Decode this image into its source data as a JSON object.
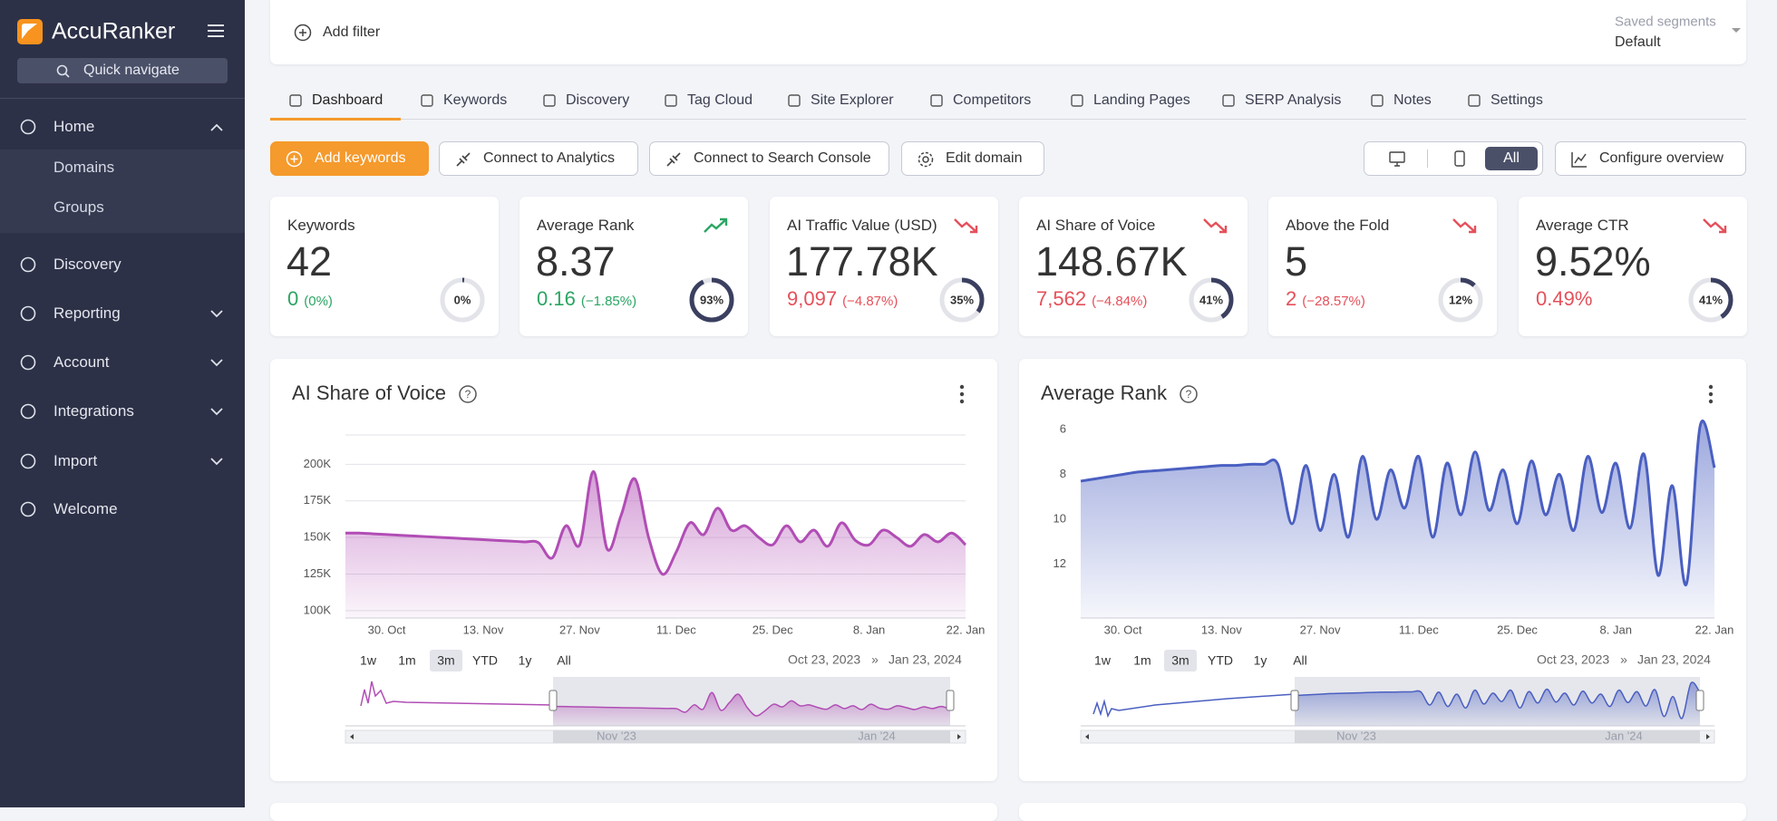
{
  "sidebar": {
    "brand": "AccuRanker",
    "search": "Quick navigate",
    "menu": [
      "Home",
      "Discovery",
      "Reporting",
      "Account",
      "Integrations",
      "Import",
      "Welcome"
    ],
    "submenu": [
      "Domains",
      "Groups"
    ]
  },
  "filter_bar": {
    "add_filter": "Add filter",
    "segments_label": "Saved segments",
    "segments_value": "Default"
  },
  "tabs": [
    "Dashboard",
    "Keywords",
    "Discovery",
    "Tag Cloud",
    "Site Explorer",
    "Competitors",
    "Landing Pages",
    "SERP Analysis",
    "Notes",
    "Settings"
  ],
  "actions": {
    "add_keywords": "Add keywords",
    "analytics": "Connect to Analytics",
    "search_console": "Connect to Search Console",
    "edit_domain": "Edit domain",
    "device": "All",
    "configure": "Configure overview"
  },
  "kpis": [
    {
      "title": "Keywords",
      "value": "42",
      "change": "0",
      "change_pct": "(0%)",
      "change_color": "#2aa563",
      "gauge": {
        "value": 0,
        "label": "0%"
      }
    },
    {
      "title": "Average Rank",
      "value": "8.37",
      "change": "0.16",
      "change_pct": "(−1.85%)",
      "change_color": "#2aa563",
      "trend": "up",
      "gauge": {
        "value": 93,
        "label": "93%"
      }
    },
    {
      "title": "AI Traffic Value (USD)",
      "value": "177.78K",
      "change": "9,097",
      "change_pct": "(−4.87%)",
      "change_color": "#e5505a",
      "trend": "down",
      "gauge": {
        "value": 35,
        "label": "35%"
      }
    },
    {
      "title": "AI Share of Voice",
      "value": "148.67K",
      "change": "7,562",
      "change_pct": "(−4.84%)",
      "change_color": "#e5505a",
      "trend": "down",
      "gauge": {
        "value": 41,
        "label": "41%"
      }
    },
    {
      "title": "Above the Fold",
      "value": "5",
      "change": "2",
      "change_pct": "(−28.57%)",
      "change_color": "#e5505a",
      "trend": "down",
      "gauge": {
        "value": 12,
        "label": "12%"
      }
    },
    {
      "title": "Average CTR",
      "value": "9.52%",
      "change": "0.49%",
      "change_color": "#e5505a",
      "trend": "down",
      "gauge": {
        "value": 41,
        "label": "41%"
      }
    }
  ],
  "chart_data": [
    {
      "type": "area",
      "title": "AI Share of Voice",
      "color": "#b14db5",
      "grid": true,
      "categories": [
        null,
        null,
        null,
        "30. Oct",
        null,
        null,
        null,
        null,
        null,
        null,
        "13. Nov",
        null,
        null,
        null,
        null,
        null,
        null,
        "27. Nov",
        null,
        null,
        null,
        null,
        null,
        null,
        "11. Dec",
        null,
        null,
        null,
        null,
        null,
        null,
        "25. Dec",
        null,
        null,
        null,
        null,
        null,
        null,
        "8. Jan",
        null,
        null,
        null,
        null,
        null,
        null,
        "22. Jan"
      ],
      "values": [
        153000,
        153000,
        152500,
        152000,
        151500,
        151000,
        150500,
        150000,
        149500,
        149000,
        148500,
        148000,
        147500,
        147000,
        146500,
        136000,
        158000,
        145000,
        195000,
        142000,
        165000,
        190000,
        150000,
        125000,
        140000,
        160000,
        152000,
        170000,
        155000,
        158000,
        150000,
        145000,
        158000,
        147000,
        155000,
        144000,
        160000,
        148000,
        145000,
        155000,
        150000,
        144000,
        152000,
        147000,
        153000,
        145000
      ],
      "ylim": [
        95000,
        220000
      ],
      "yticks": [
        {
          "value": 100000,
          "label": "100K"
        },
        {
          "value": 125000,
          "label": "125K"
        },
        {
          "value": 150000,
          "label": "150K"
        },
        {
          "value": 175000,
          "label": "175K"
        },
        {
          "value": 200000,
          "label": "200K"
        }
      ],
      "ranges": [
        "1w",
        "1m",
        "3m",
        "YTD",
        "1y",
        "All"
      ],
      "selected_range": "3m",
      "date_from": "Oct 23, 2023",
      "date_sep": "»",
      "date_to": "Jan 23, 2024",
      "navigator_labels": [
        "Nov '23",
        "Jan '24"
      ]
    },
    {
      "type": "area",
      "title": "Average Rank",
      "color": "#4a5fc1",
      "grid": false,
      "reverse_y": true,
      "categories": [
        null,
        null,
        null,
        "30. Oct",
        null,
        null,
        null,
        null,
        null,
        null,
        "13. Nov",
        null,
        null,
        null,
        null,
        null,
        null,
        "27. Nov",
        null,
        null,
        null,
        null,
        null,
        null,
        "11. Dec",
        null,
        null,
        null,
        null,
        null,
        null,
        "25. Dec",
        null,
        null,
        null,
        null,
        null,
        null,
        "8. Jan",
        null,
        null,
        null,
        null,
        null,
        null,
        "22. Jan"
      ],
      "values": [
        8.3,
        8.2,
        8.1,
        8.0,
        7.9,
        7.85,
        7.8,
        7.75,
        7.7,
        7.65,
        7.6,
        7.6,
        7.55,
        7.55,
        7.55,
        10.2,
        7.6,
        10.5,
        8.0,
        10.8,
        7.2,
        10.0,
        7.8,
        9.5,
        7.2,
        10.8,
        7.5,
        9.8,
        7.0,
        9.6,
        7.8,
        10.2,
        7.4,
        9.8,
        8.0,
        10.5,
        7.2,
        9.7,
        7.5,
        10.4,
        7.1,
        12.5,
        8.5,
        12.9,
        5.8,
        7.7
      ],
      "ylim": [
        6,
        14.4
      ],
      "yticks": [
        6,
        8,
        10,
        12
      ],
      "ranges": [
        "1w",
        "1m",
        "3m",
        "YTD",
        "1y",
        "All"
      ],
      "selected_range": "3m",
      "date_from": "Oct 23, 2023",
      "date_sep": "»",
      "date_to": "Jan 23, 2024",
      "navigator_labels": [
        "Nov '23",
        "Jan '24"
      ]
    }
  ]
}
